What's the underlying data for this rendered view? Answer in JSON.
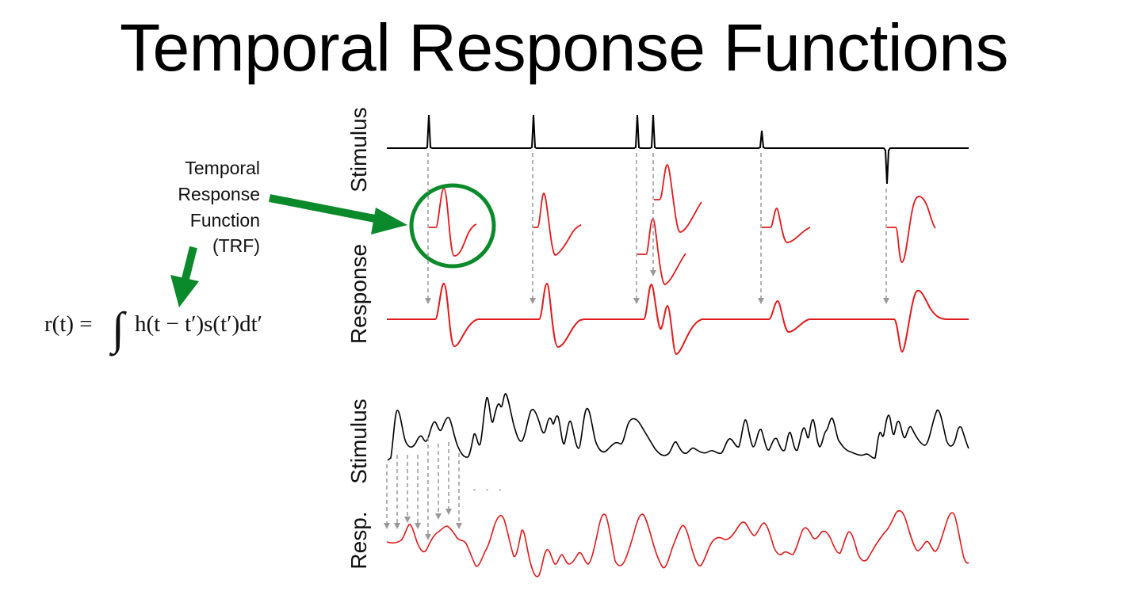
{
  "title": "Temporal Response Functions",
  "annotation": {
    "lines": [
      "Temporal",
      "Response",
      "Function",
      "(TRF)"
    ]
  },
  "equation": {
    "lhs": "r(t) =",
    "integral": "∫",
    "rhs": "h(t − t′)s(t′)dt′"
  },
  "top_panel": {
    "stimulus_label": "Stimulus",
    "response_label": "Response"
  },
  "bottom_panel": {
    "stimulus_label": "Stimulus",
    "response_label": "Resp.",
    "ellipsis": "· · ·"
  },
  "colors": {
    "stimulus": "#000000",
    "response": "#e31a1c",
    "arrow_green": "#0a8a2a",
    "dashed_arrow": "#999999"
  }
}
